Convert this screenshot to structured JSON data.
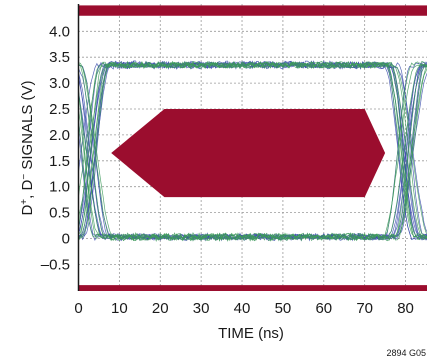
{
  "chart_data": {
    "type": "line",
    "subtype": "eye-diagram",
    "title": "",
    "xlabel": "TIME (ns)",
    "ylabel_parts": [
      "D",
      "+",
      ", D",
      "−",
      " SIGNALS (V)"
    ],
    "xlim": [
      0,
      85
    ],
    "ylim": [
      -0.9,
      4.3
    ],
    "x_ticks": [
      0,
      10,
      20,
      30,
      40,
      50,
      60,
      70,
      80
    ],
    "x_tick_labels": [
      "0",
      "10",
      "20",
      "30",
      "40",
      "50",
      "60",
      "70",
      "80"
    ],
    "y_ticks": [
      4.0,
      3.5,
      3.0,
      2.5,
      2.0,
      1.5,
      1.0,
      0.5,
      0,
      -0.5
    ],
    "y_tick_labels": [
      "4.0",
      "3.5",
      "3.0",
      "2.5",
      "2.0",
      "1.5",
      "1.0",
      "0.5",
      "0",
      "–0.5"
    ],
    "grid": true,
    "limit_bands": [
      {
        "name": "upper-limit",
        "y_min": 4.3,
        "y_max": 4.5
      },
      {
        "name": "lower-limit",
        "y_min": -1.2,
        "y_max": -0.9
      }
    ],
    "eye_mask": {
      "points": [
        [
          8,
          1.65
        ],
        [
          21,
          2.5
        ],
        [
          70,
          2.5
        ],
        [
          75,
          1.65
        ],
        [
          70,
          0.8
        ],
        [
          21,
          0.8
        ]
      ]
    },
    "signal_levels": {
      "high": 3.35,
      "low": 0.03
    },
    "transitions": [
      {
        "center": 2.5,
        "width": 7
      },
      {
        "center": 80,
        "width": 7
      }
    ],
    "series": [
      {
        "color": "#3c4dad",
        "count": 18
      },
      {
        "color": "#3d9a5a",
        "count": 14
      }
    ],
    "colors": {
      "mask": "#9b0d2e",
      "band": "#9b0d2e",
      "grid": "#9a9a9a",
      "axis": "#1a1a1a"
    },
    "figure_id": "2894 G05"
  }
}
